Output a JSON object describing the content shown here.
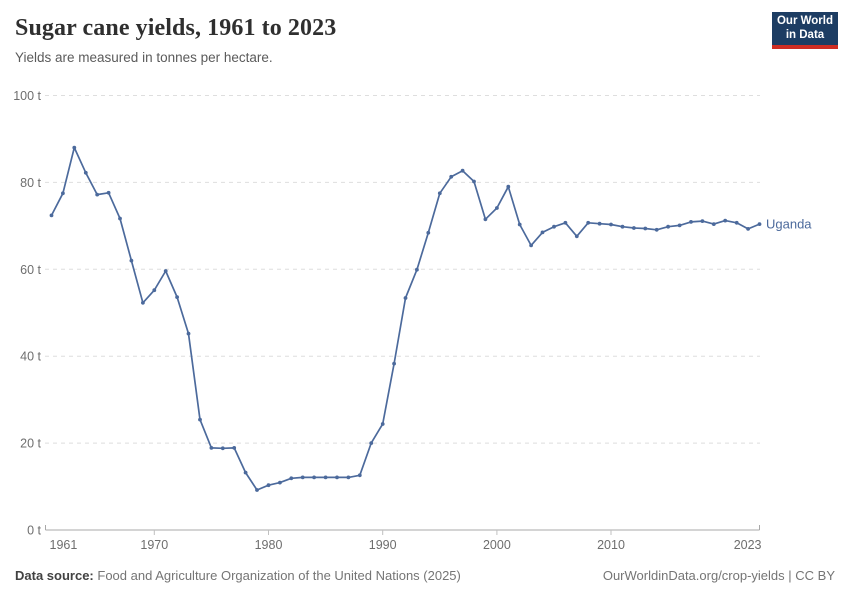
{
  "header": {
    "title": "Sugar cane yields, 1961 to 2023",
    "subtitle": "Yields are measured in tonnes per hectare."
  },
  "logo": {
    "line1": "Our World",
    "line2": "in Data",
    "bg_color": "#1d3d63",
    "accent_color": "#cf2d23"
  },
  "chart_data": {
    "type": "line",
    "title": "Sugar cane yields, 1961 to 2023",
    "ylabel": "tonnes per hectare",
    "xlabel": "",
    "xlim": [
      1961,
      2023
    ],
    "ylim": [
      0,
      100
    ],
    "grid": "horizontal dashed",
    "legend": "end-of-line label",
    "xticks": [
      1961,
      1970,
      1980,
      1990,
      2000,
      2010,
      2023
    ],
    "yticks": [
      {
        "value": 0,
        "label": "0 t"
      },
      {
        "value": 20,
        "label": "20 t"
      },
      {
        "value": 40,
        "label": "40 t"
      },
      {
        "value": 60,
        "label": "60 t"
      },
      {
        "value": 80,
        "label": "80 t"
      },
      {
        "value": 100,
        "label": "100 t"
      }
    ],
    "x": [
      1961,
      1962,
      1963,
      1964,
      1965,
      1966,
      1967,
      1968,
      1969,
      1970,
      1971,
      1972,
      1973,
      1974,
      1975,
      1976,
      1977,
      1978,
      1979,
      1980,
      1981,
      1982,
      1983,
      1984,
      1985,
      1986,
      1987,
      1988,
      1989,
      1990,
      1991,
      1992,
      1993,
      1994,
      1995,
      1996,
      1997,
      1998,
      1999,
      2000,
      2001,
      2002,
      2003,
      2004,
      2005,
      2006,
      2007,
      2008,
      2009,
      2010,
      2011,
      2012,
      2013,
      2014,
      2015,
      2016,
      2017,
      2018,
      2019,
      2020,
      2021,
      2022,
      2023
    ],
    "series": [
      {
        "name": "Uganda",
        "color": "#4c6a9c",
        "values": [
          72.4,
          77.5,
          88,
          82.2,
          77.2,
          77.6,
          71.7,
          62,
          52.3,
          55.2,
          59.6,
          53.6,
          45.2,
          25.4,
          18.9,
          18.8,
          18.9,
          13.2,
          9.2,
          10.3,
          10.9,
          11.9,
          12.1,
          12.1,
          12.1,
          12.1,
          12.1,
          12.6,
          20,
          24.4,
          38.3,
          53.4,
          59.9,
          68.4,
          77.5,
          81.3,
          82.7,
          80.2,
          71.5,
          74.1,
          79,
          70.3,
          65.5,
          68.5,
          69.8,
          70.7,
          67.6,
          70.7,
          70.5,
          70.3,
          69.8,
          69.5,
          69.4,
          69.1,
          69.8,
          70.1,
          70.9,
          71.1,
          70.4,
          71.2,
          70.7,
          69.3,
          70.4
        ]
      }
    ]
  },
  "footer": {
    "source_label": "Data source:",
    "source_text": "Food and Agriculture Organization of the United Nations (2025)",
    "credit": "OurWorldinData.org/crop-yields | CC BY"
  }
}
